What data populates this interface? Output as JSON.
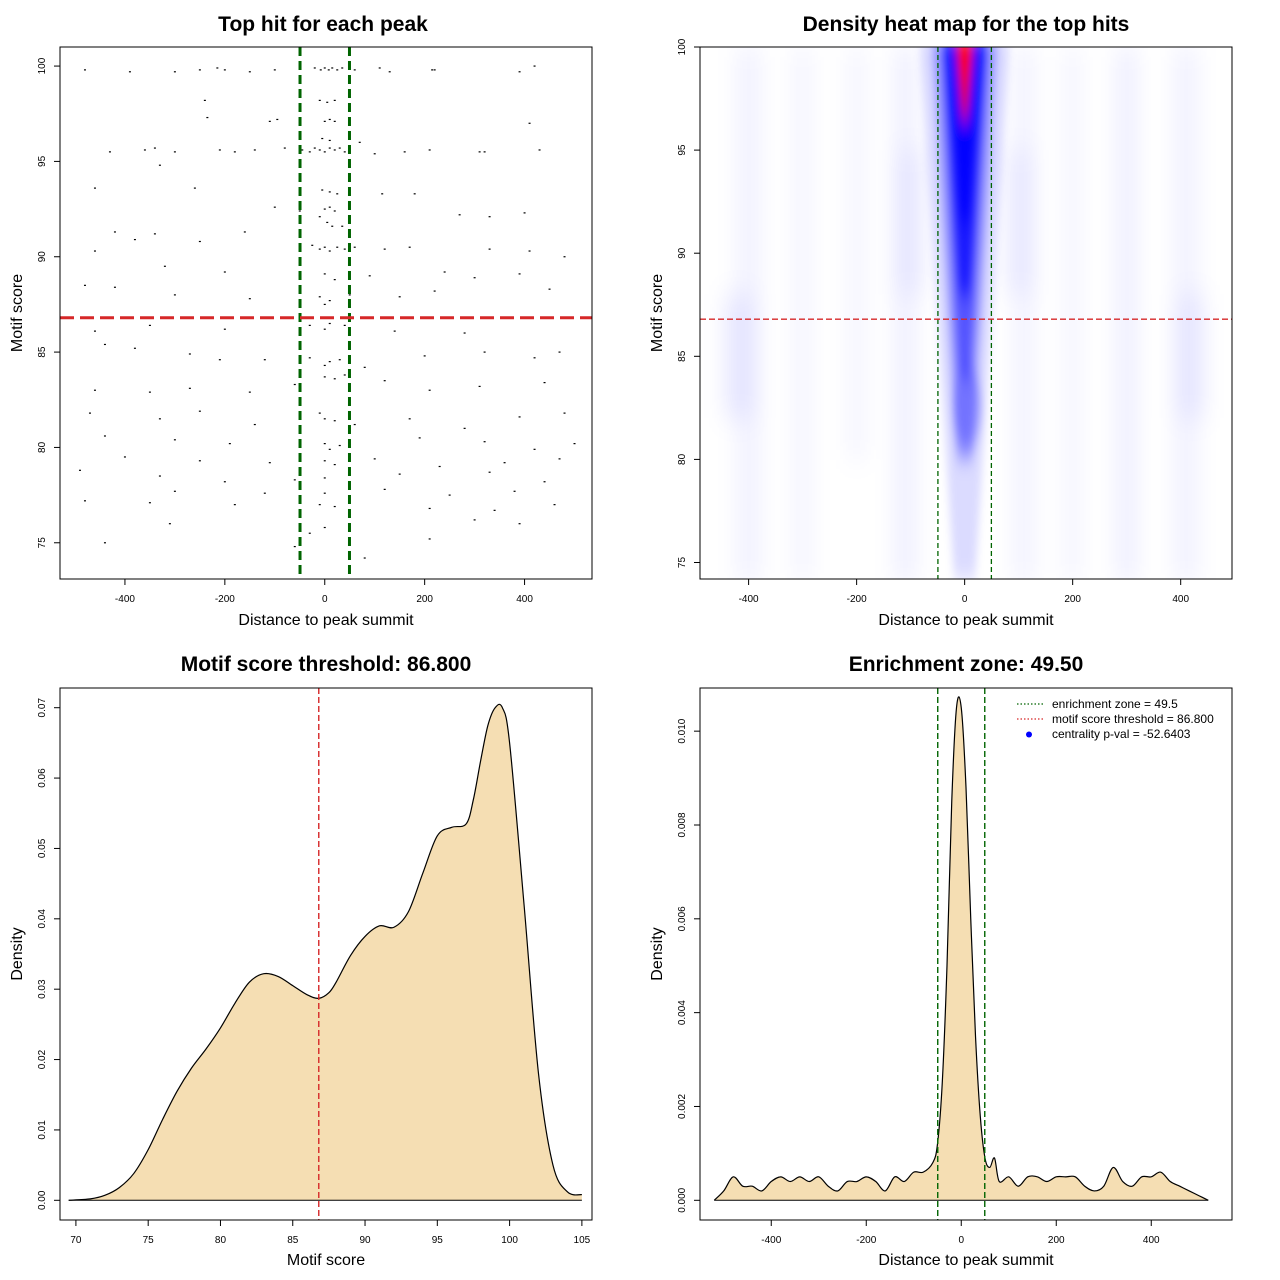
{
  "colors": {
    "scatter_point": "#000000",
    "enrichment_line": "#006400",
    "threshold_line": "#d62728",
    "density_fill": "#f5deb3",
    "density_line": "#000000",
    "heat_low": "#ffffff",
    "heat_mid": "#0000ff",
    "heat_high": "#ff0000",
    "legend_dot": "#0000ff"
  },
  "chart_data": [
    {
      "id": "scatter",
      "type": "scatter",
      "title": "Top hit for each peak",
      "xlabel": "Distance to peak summit",
      "ylabel": "Motif score",
      "xlim": [
        -530,
        535
      ],
      "ylim": [
        73.1,
        101.0
      ],
      "xticks": [
        -400,
        -200,
        0,
        200,
        400
      ],
      "xtick_labels": [
        "-400",
        "-200",
        "0",
        "200",
        "400"
      ],
      "yticks": [
        75,
        80,
        85,
        90,
        95,
        100
      ],
      "ytick_labels": [
        "75",
        "80",
        "85",
        "90",
        "95",
        "100"
      ],
      "vlines": [
        -49.5,
        49.5
      ],
      "hline": 86.8,
      "points": [
        [
          -480,
          99.8
        ],
        [
          -390,
          99.7
        ],
        [
          -300,
          99.7
        ],
        [
          -250,
          99.8
        ],
        [
          -215,
          99.9
        ],
        [
          -200,
          99.8
        ],
        [
          -150,
          99.7
        ],
        [
          -100,
          99.8
        ],
        [
          -20,
          99.9
        ],
        [
          -8,
          99.8
        ],
        [
          0,
          99.9
        ],
        [
          8,
          99.8
        ],
        [
          15,
          99.9
        ],
        [
          25,
          99.8
        ],
        [
          35,
          99.9
        ],
        [
          60,
          99.8
        ],
        [
          110,
          99.9
        ],
        [
          130,
          99.7
        ],
        [
          215,
          99.8
        ],
        [
          220,
          99.8
        ],
        [
          390,
          99.7
        ],
        [
          420,
          100.0
        ],
        [
          -240,
          98.2
        ],
        [
          -10,
          98.2
        ],
        [
          5,
          98.1
        ],
        [
          20,
          98.2
        ],
        [
          -235,
          97.3
        ],
        [
          -110,
          97.1
        ],
        [
          -95,
          97.2
        ],
        [
          0,
          97.1
        ],
        [
          10,
          97.2
        ],
        [
          20,
          97.1
        ],
        [
          410,
          97.0
        ],
        [
          -5,
          96.2
        ],
        [
          10,
          96.1
        ],
        [
          70,
          96.0
        ],
        [
          -430,
          95.5
        ],
        [
          -360,
          95.6
        ],
        [
          -340,
          95.7
        ],
        [
          -300,
          95.5
        ],
        [
          -210,
          95.6
        ],
        [
          -180,
          95.5
        ],
        [
          -140,
          95.6
        ],
        [
          -80,
          95.7
        ],
        [
          -45,
          95.6
        ],
        [
          -30,
          95.5
        ],
        [
          -20,
          95.7
        ],
        [
          -10,
          95.6
        ],
        [
          0,
          95.5
        ],
        [
          10,
          95.7
        ],
        [
          20,
          95.6
        ],
        [
          30,
          95.7
        ],
        [
          40,
          95.5
        ],
        [
          100,
          95.4
        ],
        [
          160,
          95.5
        ],
        [
          210,
          95.6
        ],
        [
          310,
          95.5
        ],
        [
          320,
          95.5
        ],
        [
          430,
          95.6
        ],
        [
          -330,
          94.8
        ],
        [
          -460,
          93.6
        ],
        [
          -260,
          93.6
        ],
        [
          -5,
          93.5
        ],
        [
          10,
          93.4
        ],
        [
          25,
          93.3
        ],
        [
          115,
          93.3
        ],
        [
          180,
          93.3
        ],
        [
          -100,
          92.6
        ],
        [
          -50,
          92.4
        ],
        [
          0,
          92.5
        ],
        [
          10,
          92.6
        ],
        [
          20,
          92.4
        ],
        [
          -10,
          92.1
        ],
        [
          5,
          91.8
        ],
        [
          15,
          91.6
        ],
        [
          35,
          91.6
        ],
        [
          -420,
          91.3
        ],
        [
          -340,
          91.2
        ],
        [
          -160,
          91.3
        ],
        [
          270,
          92.2
        ],
        [
          330,
          92.1
        ],
        [
          400,
          92.3
        ],
        [
          -380,
          90.9
        ],
        [
          -250,
          90.8
        ],
        [
          -25,
          90.6
        ],
        [
          -10,
          90.4
        ],
        [
          0,
          90.5
        ],
        [
          10,
          90.3
        ],
        [
          25,
          90.5
        ],
        [
          40,
          90.4
        ],
        [
          60,
          90.5
        ],
        [
          120,
          90.4
        ],
        [
          170,
          90.5
        ],
        [
          330,
          90.4
        ],
        [
          410,
          90.3
        ],
        [
          480,
          90.0
        ],
        [
          -460,
          90.3
        ],
        [
          -320,
          89.5
        ],
        [
          -200,
          89.2
        ],
        [
          -50,
          89.0
        ],
        [
          0,
          89.1
        ],
        [
          20,
          88.8
        ],
        [
          90,
          89.0
        ],
        [
          240,
          89.2
        ],
        [
          300,
          88.9
        ],
        [
          390,
          89.1
        ],
        [
          -480,
          88.5
        ],
        [
          -420,
          88.4
        ],
        [
          -300,
          88.0
        ],
        [
          -150,
          87.8
        ],
        [
          -10,
          87.9
        ],
        [
          0,
          87.5
        ],
        [
          10,
          87.7
        ],
        [
          50,
          88.0
        ],
        [
          150,
          87.9
        ],
        [
          220,
          88.2
        ],
        [
          450,
          88.3
        ],
        [
          -460,
          86.1
        ],
        [
          -350,
          86.4
        ],
        [
          -200,
          86.2
        ],
        [
          -30,
          86.4
        ],
        [
          0,
          86.2
        ],
        [
          10,
          86.5
        ],
        [
          40,
          86.4
        ],
        [
          140,
          86.1
        ],
        [
          280,
          86.0
        ],
        [
          -440,
          85.4
        ],
        [
          -380,
          85.2
        ],
        [
          -270,
          84.9
        ],
        [
          -210,
          84.6
        ],
        [
          -120,
          84.6
        ],
        [
          -30,
          84.7
        ],
        [
          0,
          84.3
        ],
        [
          10,
          84.5
        ],
        [
          30,
          84.6
        ],
        [
          80,
          84.2
        ],
        [
          200,
          84.8
        ],
        [
          320,
          85.0
        ],
        [
          420,
          84.7
        ],
        [
          470,
          85.0
        ],
        [
          -460,
          83.0
        ],
        [
          -350,
          82.9
        ],
        [
          -270,
          83.1
        ],
        [
          -150,
          82.9
        ],
        [
          -60,
          83.3
        ],
        [
          0,
          83.7
        ],
        [
          20,
          83.6
        ],
        [
          40,
          83.8
        ],
        [
          120,
          83.5
        ],
        [
          210,
          83.0
        ],
        [
          310,
          83.2
        ],
        [
          440,
          83.4
        ],
        [
          -470,
          81.8
        ],
        [
          -330,
          81.5
        ],
        [
          -250,
          81.9
        ],
        [
          -140,
          81.2
        ],
        [
          -10,
          81.8
        ],
        [
          0,
          81.5
        ],
        [
          20,
          81.4
        ],
        [
          60,
          81.2
        ],
        [
          170,
          81.5
        ],
        [
          280,
          81.0
        ],
        [
          390,
          81.6
        ],
        [
          480,
          81.8
        ],
        [
          -440,
          80.6
        ],
        [
          -300,
          80.4
        ],
        [
          -190,
          80.2
        ],
        [
          0,
          80.2
        ],
        [
          10,
          79.9
        ],
        [
          30,
          80.1
        ],
        [
          190,
          80.5
        ],
        [
          320,
          80.3
        ],
        [
          420,
          79.9
        ],
        [
          500,
          80.2
        ],
        [
          -400,
          79.5
        ],
        [
          -250,
          79.3
        ],
        [
          -110,
          79.2
        ],
        [
          0,
          79.3
        ],
        [
          20,
          79.1
        ],
        [
          100,
          79.4
        ],
        [
          230,
          79.0
        ],
        [
          360,
          79.2
        ],
        [
          470,
          79.4
        ],
        [
          -490,
          78.8
        ],
        [
          -330,
          78.5
        ],
        [
          -200,
          78.2
        ],
        [
          -60,
          78.3
        ],
        [
          0,
          78.4
        ],
        [
          150,
          78.6
        ],
        [
          330,
          78.7
        ],
        [
          440,
          78.2
        ],
        [
          -300,
          77.7
        ],
        [
          -120,
          77.6
        ],
        [
          0,
          77.6
        ],
        [
          120,
          77.8
        ],
        [
          250,
          77.5
        ],
        [
          380,
          77.7
        ],
        [
          -350,
          77.1
        ],
        [
          -180,
          77.0
        ],
        [
          -10,
          77.0
        ],
        [
          20,
          76.9
        ],
        [
          210,
          76.8
        ],
        [
          340,
          76.7
        ],
        [
          460,
          77.0
        ],
        [
          -480,
          77.2
        ],
        [
          -310,
          76.0
        ],
        [
          -30,
          75.5
        ],
        [
          0,
          75.8
        ],
        [
          210,
          75.2
        ],
        [
          300,
          76.2
        ],
        [
          390,
          76.0
        ],
        [
          -440,
          75.0
        ],
        [
          -60,
          74.8
        ],
        [
          80,
          74.2
        ]
      ]
    },
    {
      "id": "heatmap",
      "type": "heatmap",
      "title": "Density heat map for the top hits",
      "xlabel": "Distance to peak summit",
      "ylabel": "Motif score",
      "xlim": [
        -490,
        495
      ],
      "ylim": [
        74.2,
        100.0
      ],
      "xticks": [
        -400,
        -200,
        0,
        200,
        400
      ],
      "xtick_labels": [
        "-400",
        "-200",
        "0",
        "200",
        "400"
      ],
      "yticks": [
        75,
        80,
        85,
        90,
        95,
        100
      ],
      "ytick_labels": [
        "75",
        "80",
        "85",
        "90",
        "95",
        "100"
      ],
      "vlines": [
        -49.5,
        49.5
      ],
      "hline": 86.8
    },
    {
      "id": "score-density",
      "type": "area",
      "title": "Motif score threshold: 86.800",
      "xlabel": "Motif score",
      "ylabel": "Density",
      "xlim": [
        68.9,
        105.7
      ],
      "ylim": [
        -0.0028,
        0.0728
      ],
      "xticks": [
        70,
        75,
        80,
        85,
        90,
        95,
        100,
        105
      ],
      "xtick_labels": [
        "70",
        "75",
        "80",
        "85",
        "90",
        "95",
        "100",
        "105"
      ],
      "yticks": [
        0.0,
        0.01,
        0.02,
        0.03,
        0.04,
        0.05,
        0.06,
        0.07
      ],
      "ytick_labels": [
        "0.00",
        "0.01",
        "0.02",
        "0.03",
        "0.04",
        "0.05",
        "0.06",
        "0.07"
      ],
      "vline": 86.8,
      "x": [
        69.5,
        71,
        72,
        73,
        74,
        75,
        76,
        77,
        78,
        79,
        80,
        81,
        82,
        83,
        84,
        85,
        86,
        86.8,
        87.5,
        88,
        89,
        90,
        91,
        92,
        93,
        94,
        95,
        96,
        97,
        97.5,
        98,
        98.5,
        99,
        99.5,
        100,
        101,
        102,
        103,
        104,
        105
      ],
      "values": [
        0.0,
        0.0002,
        0.0007,
        0.0018,
        0.0038,
        0.0072,
        0.0115,
        0.0155,
        0.0188,
        0.0215,
        0.0245,
        0.028,
        0.031,
        0.0322,
        0.0318,
        0.0305,
        0.0292,
        0.0287,
        0.0295,
        0.031,
        0.0348,
        0.0375,
        0.039,
        0.0388,
        0.041,
        0.0465,
        0.0518,
        0.053,
        0.0535,
        0.057,
        0.0625,
        0.0675,
        0.07,
        0.07,
        0.065,
        0.042,
        0.018,
        0.005,
        0.0012,
        0.0008
      ]
    },
    {
      "id": "distance-density",
      "type": "area",
      "title": "Enrichment zone: 49.50",
      "xlabel": "Distance to peak summit",
      "ylabel": "Density",
      "xlim": [
        -550,
        570
      ],
      "ylim": [
        -0.00042,
        0.01092
      ],
      "xticks": [
        -400,
        -200,
        0,
        200,
        400
      ],
      "xtick_labels": [
        "-400",
        "-200",
        "0",
        "200",
        "400"
      ],
      "yticks": [
        0.0,
        0.002,
        0.004,
        0.006,
        0.008,
        0.01
      ],
      "ytick_labels": [
        "0.000",
        "0.002",
        "0.004",
        "0.006",
        "0.008",
        "0.010"
      ],
      "vlines": [
        -49.5,
        49.5
      ],
      "x": [
        -520,
        -500,
        -480,
        -460,
        -440,
        -420,
        -400,
        -380,
        -360,
        -340,
        -320,
        -300,
        -280,
        -260,
        -240,
        -220,
        -200,
        -180,
        -160,
        -140,
        -120,
        -100,
        -80,
        -60,
        -50,
        -40,
        -30,
        -20,
        -10,
        0,
        10,
        20,
        30,
        40,
        50,
        60,
        70,
        80,
        100,
        120,
        140,
        160,
        180,
        200,
        220,
        240,
        260,
        280,
        300,
        320,
        340,
        360,
        380,
        400,
        420,
        440,
        460,
        480,
        500,
        520
      ],
      "values": [
        0.0,
        0.0002,
        0.0005,
        0.0003,
        0.0003,
        0.0002,
        0.0004,
        0.0005,
        0.0004,
        0.0005,
        0.0004,
        0.0005,
        0.0003,
        0.0002,
        0.0004,
        0.0004,
        0.0005,
        0.0004,
        0.0002,
        0.0005,
        0.0004,
        0.0006,
        0.0006,
        0.0008,
        0.0012,
        0.0025,
        0.005,
        0.0085,
        0.0105,
        0.0105,
        0.0088,
        0.006,
        0.0035,
        0.0018,
        0.0009,
        0.0007,
        0.0009,
        0.0004,
        0.0005,
        0.0003,
        0.0005,
        0.0005,
        0.0004,
        0.0005,
        0.0005,
        0.0005,
        0.0003,
        0.0002,
        0.0003,
        0.0007,
        0.0004,
        0.0003,
        0.0005,
        0.0005,
        0.0006,
        0.0004,
        0.0003,
        0.0002,
        0.0001,
        0.0
      ],
      "legend": [
        {
          "label": "enrichment zone = 49.5",
          "kind": "dotted-green"
        },
        {
          "label": "motif score threshold = 86.800",
          "kind": "dotted-red"
        },
        {
          "label": "centrality p-val = -52.6403",
          "kind": "dot-blue"
        }
      ]
    }
  ]
}
